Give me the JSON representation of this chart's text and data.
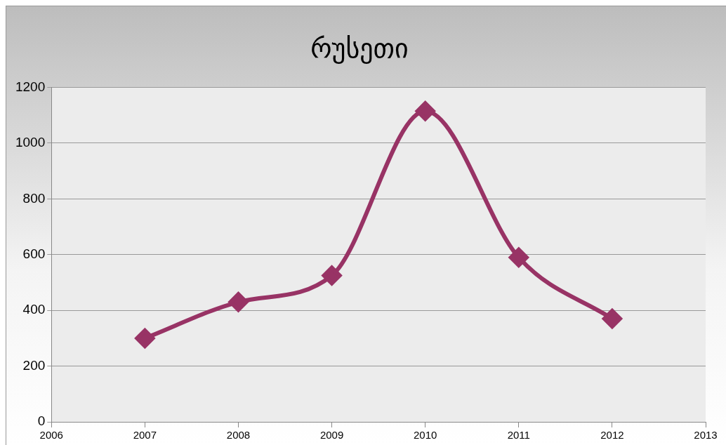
{
  "chart_data": {
    "type": "line",
    "title": "რუსეთი",
    "x": [
      2007,
      2008,
      2009,
      2010,
      2011,
      2012
    ],
    "series": [
      {
        "color": "#983365",
        "values": [
          300,
          430,
          525,
          1115,
          590,
          370
        ]
      }
    ],
    "xlim": [
      2006,
      2013
    ],
    "xticks": [
      2006,
      2007,
      2008,
      2009,
      2010,
      2011,
      2012,
      2013
    ],
    "ylim": [
      0,
      1200
    ],
    "yticks": [
      0,
      200,
      400,
      600,
      800,
      1000,
      1200
    ],
    "grid": "y",
    "marker": "diamond",
    "line_style": "solid"
  }
}
